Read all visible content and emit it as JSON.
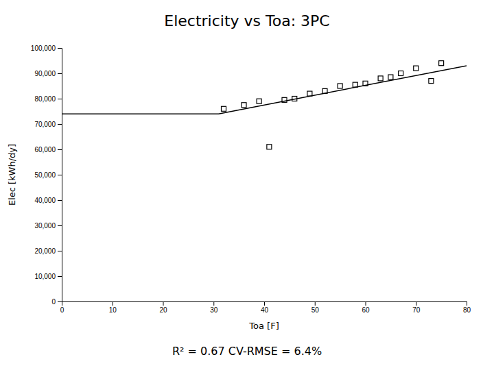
{
  "chart_data": {
    "type": "scatter",
    "title": "Electricity vs Toa: 3PC",
    "subtitle": "R² = 0.67    CV-RMSE = 6.4%",
    "x_label": "Toa [F]",
    "y_label": "Elec [kWh/dy]",
    "xlim": [
      0,
      80
    ],
    "ylim": [
      0,
      100000
    ],
    "xticks": [
      0,
      10,
      20,
      30,
      40,
      50,
      60,
      70,
      80
    ],
    "yticks": [
      0,
      {
        "value": 10000,
        "label": "10,000"
      },
      {
        "value": 20000,
        "label": "20,000"
      },
      {
        "value": 30000,
        "label": "30,000"
      },
      {
        "value": 40000,
        "label": "40,000"
      },
      {
        "value": 50000,
        "label": "50,000"
      },
      {
        "value": 60000,
        "label": "60,000"
      },
      {
        "value": 70000,
        "label": "70,000"
      },
      {
        "value": 80000,
        "label": "80,000"
      },
      {
        "value": 90000,
        "label": "90,000"
      },
      {
        "value": 100000,
        "label": "100,000"
      }
    ],
    "grid": false,
    "series": [
      {
        "type": "line",
        "color": "#000000",
        "line_style": "solid",
        "x": [
          0,
          31,
          80
        ],
        "values": [
          74000,
          74000,
          93000
        ]
      },
      {
        "type": "scatter",
        "color": "#000000",
        "marker": "square",
        "x": [
          32,
          36,
          39,
          41,
          44,
          46,
          49,
          52,
          55,
          58,
          60,
          63,
          65,
          67,
          70,
          73,
          75
        ],
        "values": [
          76000,
          77500,
          79000,
          61000,
          79500,
          80000,
          82000,
          83000,
          85000,
          85500,
          86000,
          88000,
          88500,
          90000,
          92000,
          87000,
          94000
        ]
      }
    ]
  }
}
